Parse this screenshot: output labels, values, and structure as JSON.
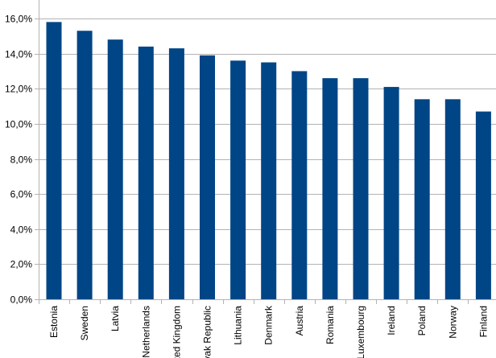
{
  "chart_data": {
    "type": "bar",
    "title": "",
    "xlabel": "",
    "ylabel": "",
    "categories": [
      "Estonia",
      "Sweden",
      "Latvia",
      "Netherlands",
      "United Kingdom",
      "Slovak Republic",
      "Lithuania",
      "Denmark",
      "Austria",
      "Romania",
      "Luxembourg",
      "Ireland",
      "Poland",
      "Norway",
      "Finland"
    ],
    "values": [
      15.8,
      15.3,
      14.8,
      14.4,
      14.3,
      13.9,
      13.6,
      13.5,
      13.0,
      12.6,
      12.6,
      12.1,
      11.4,
      11.4,
      10.7
    ],
    "ylim": [
      0,
      16
    ],
    "y_ticks": [
      "0,0%",
      "2,0%",
      "4,0%",
      "6,0%",
      "8,0%",
      "10,0%",
      "12,0%",
      "14,0%",
      "16,0%"
    ],
    "grid": true,
    "legend": "none",
    "colors": {
      "bar": "#004586",
      "grid": "#b3b3b3",
      "axis": "#b3b3b3"
    }
  }
}
